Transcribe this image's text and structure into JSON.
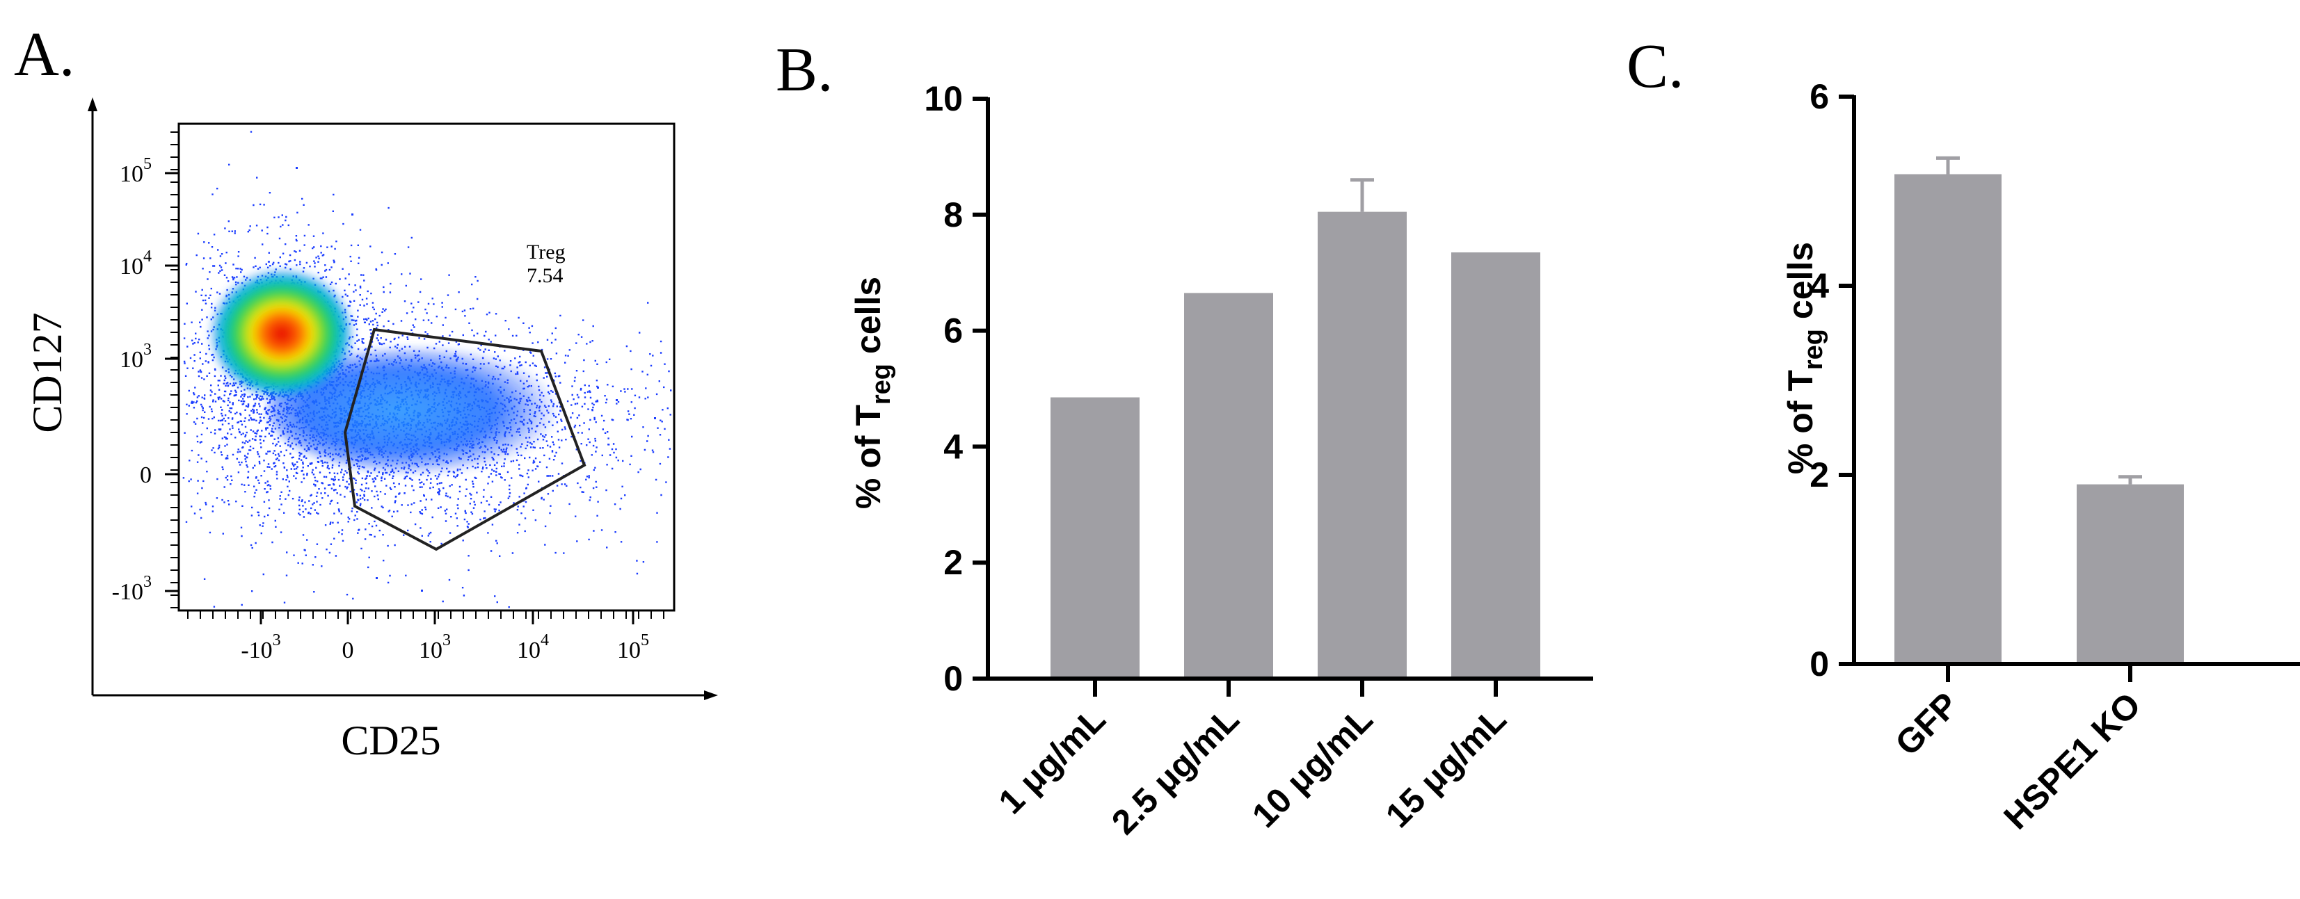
{
  "panels": {
    "a": {
      "letter": "A.",
      "xlabel": "CD25",
      "ylabel": "CD127",
      "gate_name": "Treg",
      "gate_value": "7.54",
      "x_ticks": [
        {
          "base": "-10",
          "exp": "3"
        },
        {
          "base": "0",
          "exp": ""
        },
        {
          "base": "10",
          "exp": "3"
        },
        {
          "base": "10",
          "exp": "4"
        },
        {
          "base": "10",
          "exp": "5"
        }
      ],
      "y_ticks": [
        {
          "base": "10",
          "exp": "5"
        },
        {
          "base": "10",
          "exp": "4"
        },
        {
          "base": "10",
          "exp": "3"
        },
        {
          "base": "0",
          "exp": ""
        },
        {
          "base": "-10",
          "exp": "3"
        }
      ]
    },
    "b": {
      "letter": "B."
    },
    "c": {
      "letter": "C."
    }
  },
  "ylabel_parts": {
    "pre": "% of T",
    "sub": "reg",
    "post": " cells"
  },
  "chart_data": [
    {
      "type": "scatter",
      "panel": "A",
      "title": "",
      "xlabel": "CD25",
      "ylabel": "CD127",
      "x_scale": "biexponential",
      "y_scale": "biexponential",
      "gate": {
        "name": "Treg",
        "value": 7.54
      }
    },
    {
      "type": "bar",
      "panel": "B",
      "title": "",
      "xlabel": "",
      "ylabel": "% of Treg cells",
      "categories": [
        "1 μg/mL",
        "2.5 μg/mL",
        "10 μg/mL",
        "15 μg/mL"
      ],
      "values": [
        4.85,
        6.65,
        8.05,
        7.35
      ],
      "error_upper": [
        0,
        0,
        0.55,
        0
      ],
      "ylim": [
        0,
        10
      ],
      "yticks": [
        0,
        2,
        4,
        6,
        8,
        10
      ],
      "bar_color": "#a09fa4"
    },
    {
      "type": "bar",
      "panel": "C",
      "title": "",
      "xlabel": "",
      "ylabel": "% of Treg cells",
      "categories": [
        "GFP",
        "HSPE1 KO"
      ],
      "values": [
        5.18,
        1.9
      ],
      "error_upper": [
        0.17,
        0.08
      ],
      "ylim": [
        0,
        6
      ],
      "yticks": [
        0,
        2,
        4,
        6
      ],
      "bar_color": "#a09fa4"
    }
  ]
}
